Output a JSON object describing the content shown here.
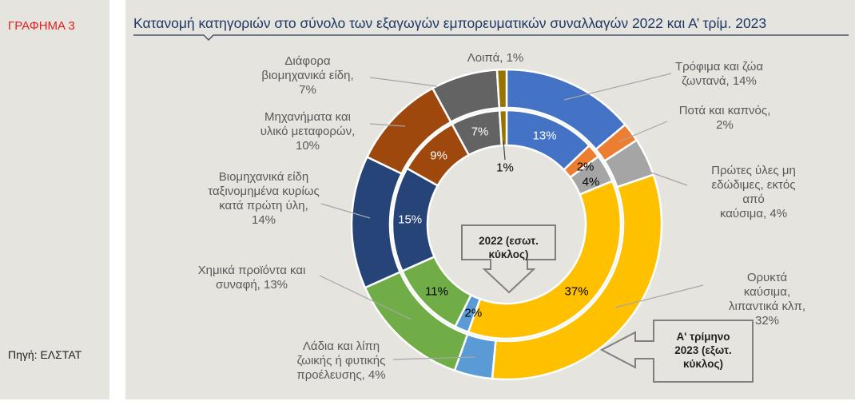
{
  "figure_label": "ΓΡΑΦΗΜΑ 3",
  "source": "Πηγή: ΕΛΣΤΑΤ",
  "chart_data": {
    "type": "pie",
    "subtype": "double-donut",
    "title": "Κατανομή κατηγοριών στο σύνολο των εξαγωγών εμπορευματικών συναλλαγών 2022 και Α’ τρίμ. 2023",
    "inner_label": "2022 (εσωτ.\nκύκλος)",
    "outer_label": "Α' τρίμηνο\n2023 (εξωτ.\nκύκλος)",
    "categories": [
      {
        "name": "Τρόφιμα και ζώα ζωντανά",
        "label": "Τρόφιμα και ζώα\nζωντανά, 14%",
        "color": "#4472C4",
        "v2022": 13,
        "v2023": 14,
        "inner_text": "13%",
        "inner_color": "#ffffff"
      },
      {
        "name": "Ποτά και καπνός",
        "label": "Ποτά και καπνός,\n2%",
        "color": "#ED7D31",
        "v2022": 2,
        "v2023": 2,
        "inner_text": "2%",
        "inner_color": "#000000"
      },
      {
        "name": "Πρώτες ύλες μη εδώδιμες, εκτός από καύσιμα",
        "label": "Πρώτες ύλες μη\nεδώδιμες, εκτός από\nκαύσιμα, 4%",
        "color": "#A5A5A5",
        "v2022": 4,
        "v2023": 4,
        "inner_text": "4%",
        "inner_color": "#000000"
      },
      {
        "name": "Ορυκτά καύσιμα, λιπαντικά κλπ",
        "label": "Ορυκτά καύσιμα,\nλιπαντικά κλπ, 32%",
        "color": "#FFC000",
        "v2022": 37,
        "v2023": 32,
        "inner_text": "37%",
        "inner_color": "#000000"
      },
      {
        "name": "Λάδια και λίπη ζωικής ή φυτικής προέλευσης",
        "label": "Λάδια και λίπη\nζωικής ή φυτικής\nπροέλευσης, 4%",
        "color": "#5B9BD5",
        "v2022": 2,
        "v2023": 4,
        "inner_text": "2%",
        "inner_color": "#000000"
      },
      {
        "name": "Χημικά προϊόντα και συναφή",
        "label": "Χημικά προϊόντα και\nσυναφή, 13%",
        "color": "#70AD47",
        "v2022": 11,
        "v2023": 13,
        "inner_text": "11%",
        "inner_color": "#000000"
      },
      {
        "name": "Βιομηχανικά είδη ταξινομημένα κυρίως κατά πρώτη ύλη",
        "label": "Βιομηχανικά είδη\nταξινομημένα κυρίως\nκατά πρώτη ύλη,\n14%",
        "color": "#264478",
        "v2022": 15,
        "v2023": 14,
        "inner_text": "15%",
        "inner_color": "#ffffff"
      },
      {
        "name": "Μηχανήματα και υλικό μεταφορών",
        "label": "Μηχανήματα και\nυλικό μεταφορών,\n10%",
        "color": "#9E480E",
        "v2022": 9,
        "v2023": 10,
        "inner_text": "9%",
        "inner_color": "#ffffff"
      },
      {
        "name": "Διάφορα βιομηχανικά είδη",
        "label": "Διάφορα\nβιομηχανικά είδη,\n7%",
        "color": "#636363",
        "v2022": 7,
        "v2023": 7,
        "inner_text": "7%",
        "inner_color": "#ffffff"
      },
      {
        "name": "Λοιπά",
        "label": "Λοιπά, 1%",
        "color": "#997300",
        "v2022": 1,
        "v2023": 1,
        "inner_text": "1%",
        "inner_color": "#000000"
      }
    ]
  }
}
